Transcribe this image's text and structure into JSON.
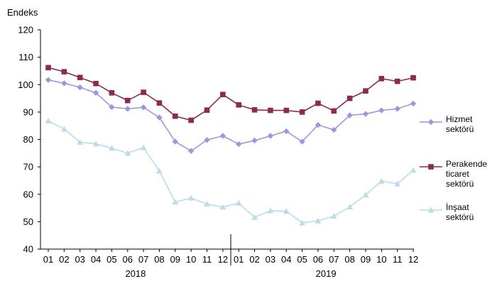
{
  "chart_data": {
    "type": "line",
    "ylabel": "Endeks",
    "ylim": [
      40,
      120
    ],
    "yticks": [
      40,
      50,
      60,
      70,
      80,
      90,
      100,
      110,
      120
    ],
    "categories": [
      "01",
      "02",
      "03",
      "04",
      "05",
      "06",
      "07",
      "08",
      "09",
      "10",
      "11",
      "12",
      "01",
      "02",
      "03",
      "04",
      "05",
      "06",
      "07",
      "08",
      "09",
      "10",
      "11",
      "12"
    ],
    "year_labels": [
      {
        "label": "2018",
        "center_index": 5.5
      },
      {
        "label": "2019",
        "center_index": 17.5
      }
    ],
    "year_divider_index": 11.5,
    "grid": false,
    "legend_position": "right",
    "series": [
      {
        "name": "Hizmet sektörü",
        "name_lines": [
          "Hizmet",
          "sektörü"
        ],
        "color": "#9a99e0",
        "marker": "diamond",
        "values": [
          101.7,
          100.5,
          99.0,
          97.0,
          91.8,
          91.2,
          91.7,
          88.0,
          79.2,
          75.8,
          79.8,
          81.3,
          78.3,
          79.6,
          81.3,
          83.0,
          79.2,
          85.3,
          83.5,
          88.8,
          89.3,
          90.6,
          91.2,
          93.1
        ]
      },
      {
        "name": "Perakende ticaret sektörü",
        "name_lines": [
          "Perakende",
          "ticaret",
          "sektörü"
        ],
        "color": "#8b2a52",
        "marker": "square",
        "values": [
          106.2,
          104.7,
          102.6,
          100.4,
          97.0,
          94.2,
          97.2,
          93.3,
          88.5,
          87.0,
          90.7,
          96.4,
          92.6,
          90.8,
          90.6,
          90.6,
          90.0,
          93.2,
          90.4,
          95.0,
          97.7,
          102.2,
          101.2,
          102.5
        ]
      },
      {
        "name": "İnşaat sektörü",
        "name_lines": [
          "İnşaat",
          "sektörü"
        ],
        "color": "#b9dde6",
        "marker": "triangle",
        "values": [
          86.8,
          83.8,
          79.0,
          78.4,
          76.8,
          75.0,
          77.0,
          68.5,
          57.2,
          58.6,
          56.4,
          55.3,
          56.8,
          51.6,
          54.0,
          53.8,
          49.6,
          50.3,
          52.0,
          55.4,
          59.8,
          64.8,
          63.8,
          68.8
        ]
      }
    ]
  }
}
